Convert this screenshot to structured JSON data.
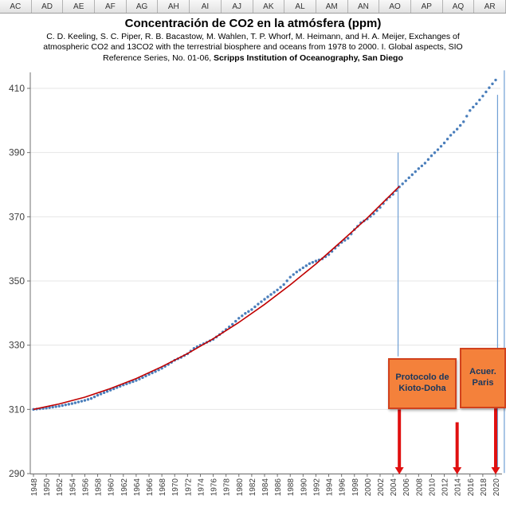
{
  "sheet": {
    "column_headers": [
      "AC",
      "AD",
      "AE",
      "AF",
      "AG",
      "AH",
      "AI",
      "AJ",
      "AK",
      "AL",
      "AM",
      "AN",
      "AO",
      "AP",
      "AQ",
      "AR"
    ]
  },
  "chart": {
    "subtitle_line1": "C. D. Keeling, S. C. Piper, R. B. Bacastow, M. Wahlen, T. P. Whorf, M. Heimann, and H. A. Meijer, Exchanges of",
    "subtitle_line2": "atmospheric CO2 and 13CO2 with the terrestrial biosphere and oceans from 1978 to 2000. I. Global aspects, SIO",
    "subtitle_line3_normal": "Reference Series, No. 01-06, ",
    "subtitle_line3_bold": "Scripps Institution of Oceanography, San Diego"
  },
  "annotations": {
    "kyoto": {
      "line1": "Protocolo de",
      "line2": "Kioto-Doha"
    },
    "paris": {
      "line1": "Acuer.",
      "line2": "Paris"
    }
  },
  "chart_data": {
    "type": "scatter",
    "title": "Concentración de CO2 en la atmósfera (ppm)",
    "xlabel": "",
    "ylabel": "",
    "grid": "light horizontal gridlines",
    "legend": "none",
    "x_ticks_start": 1948,
    "x_ticks_end": 2020,
    "x_tick_step": 2,
    "ylim": [
      288,
      416
    ],
    "y_ticks": [
      290,
      310,
      330,
      350,
      370,
      390,
      410
    ],
    "series": [
      {
        "name": "CO2 observado (puntos)",
        "style": "dots",
        "color": "#4a7ebb",
        "start_year": 1948,
        "step": 1,
        "values": [
          310.0,
          310.2,
          310.4,
          310.7,
          311.0,
          311.4,
          311.8,
          312.3,
          312.8,
          313.4,
          314.4,
          315.2,
          316.0,
          316.8,
          317.6,
          318.3,
          319.0,
          319.9,
          320.9,
          321.8,
          322.8,
          324.0,
          325.3,
          326.2,
          327.3,
          329.0,
          330.0,
          330.9,
          331.8,
          333.3,
          334.9,
          336.5,
          338.4,
          339.9,
          341.1,
          342.8,
          344.3,
          345.8,
          347.2,
          348.9,
          351.2,
          352.8,
          354.1,
          355.4,
          356.2,
          356.9,
          358.2,
          360.2,
          362.0,
          363.3,
          366.0,
          368.1,
          369.3,
          370.9,
          372.9,
          375.3,
          377.0,
          379.3,
          381.2,
          383.1,
          385.0,
          386.7,
          389.0,
          390.9,
          393.0,
          395.4,
          397.3,
          399.6,
          403.1,
          405.2,
          407.6,
          410.2,
          412.6
        ]
      },
      {
        "name": "tendencia ajustada (línea roja)",
        "style": "line",
        "color": "#c00000",
        "years": [
          1948,
          1952,
          1956,
          1960,
          1964,
          1968,
          1972,
          1976,
          1980,
          1984,
          1988,
          1992,
          1996,
          2000,
          2004,
          2005
        ],
        "values": [
          310.0,
          311.7,
          313.8,
          316.5,
          319.6,
          323.3,
          327.4,
          332.0,
          337.1,
          342.7,
          348.8,
          355.3,
          362.4,
          369.6,
          377.5,
          379.5
        ]
      }
    ],
    "drop_lines": {
      "color": "#6f9fd4",
      "items": [
        {
          "year": 2004.8,
          "from": 390.0,
          "to": 326.5
        },
        {
          "year": 2020.3,
          "from": 408.0,
          "to": 291.0
        },
        {
          "year": 2021.35,
          "from": 415.6,
          "to": 290.2
        }
      ]
    },
    "arrows": {
      "color": "#e01010",
      "items": [
        {
          "year": 2005.0,
          "from": 310.0,
          "to": 290.0
        },
        {
          "year": 2014.0,
          "from": 306.0,
          "to": 290.0
        },
        {
          "year": 2020.0,
          "from": 310.3,
          "to": 290.0
        }
      ]
    }
  }
}
